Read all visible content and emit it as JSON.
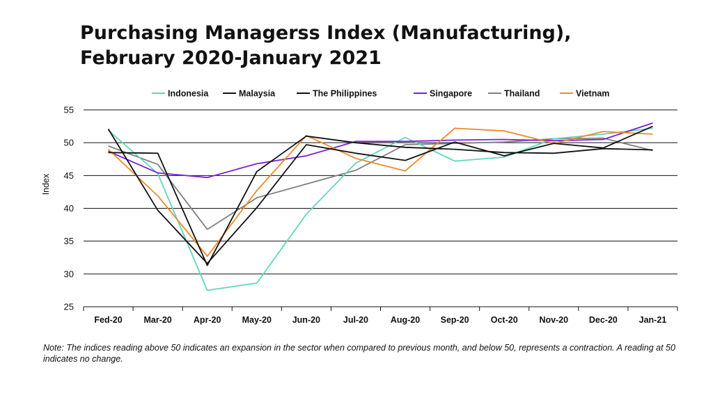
{
  "title_lines": [
    "Purchasing Managerss Index (Manufacturing),",
    "February 2020-January 2021"
  ],
  "note": "Note: The indices reading above 50 indicates an expansion in the sector when compared to previous month, and below 50, represents a contraction. A reading at 50 indicates no change.",
  "chart_data": {
    "type": "line",
    "title": "Purchasing Managerss Index (Manufacturing), February 2020-January 2021",
    "xlabel": "",
    "ylabel": "Index",
    "categories": [
      "Fed-20",
      "Mar-20",
      "Apr-20",
      "May-20",
      "Jun-20",
      "Jul-20",
      "Aug-20",
      "Sep-20",
      "Oct-20",
      "Nov-20",
      "Dec-20",
      "Jan-21"
    ],
    "ylim": [
      25,
      55
    ],
    "yticks": [
      25,
      30,
      35,
      40,
      45,
      50,
      55
    ],
    "grid": "horizontal",
    "legend_position": "top",
    "series": [
      {
        "name": "Indonesia",
        "color": "#5fd6c0",
        "values": [
          51.9,
          45.3,
          27.5,
          28.6,
          39.1,
          46.9,
          50.8,
          47.2,
          47.8,
          50.6,
          51.3,
          52.2
        ]
      },
      {
        "name": "Malaysia",
        "color": "#111111",
        "values": [
          48.5,
          48.4,
          31.3,
          45.6,
          51.0,
          50.0,
          49.3,
          49.0,
          48.5,
          48.4,
          49.1,
          48.9
        ]
      },
      {
        "name": "The Philippines",
        "color": "#111111",
        "values": [
          52.1,
          39.7,
          31.6,
          40.1,
          49.7,
          48.4,
          47.3,
          50.1,
          48.0,
          49.9,
          49.2,
          52.5
        ]
      },
      {
        "name": "Singapore",
        "color": "#7b1fd6",
        "values": [
          48.7,
          45.4,
          44.7,
          46.8,
          48.0,
          50.2,
          50.2,
          50.4,
          50.5,
          50.3,
          50.5,
          53.0
        ]
      },
      {
        "name": "Thailand",
        "color": "#7f7f7f",
        "values": [
          49.5,
          46.7,
          36.8,
          41.6,
          43.7,
          45.8,
          49.7,
          49.9,
          50.1,
          50.6,
          50.7,
          48.8
        ]
      },
      {
        "name": "Vietnam",
        "color": "#f08a24",
        "values": [
          49.0,
          41.9,
          32.7,
          42.7,
          51.1,
          47.6,
          45.7,
          52.2,
          51.8,
          49.9,
          51.7,
          51.3
        ]
      }
    ]
  }
}
